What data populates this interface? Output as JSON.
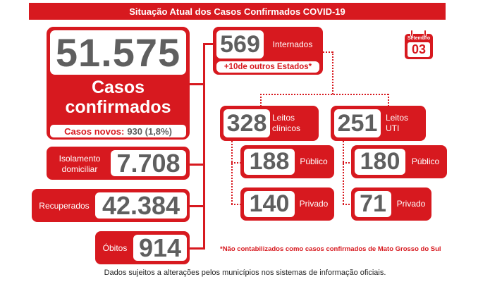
{
  "header": {
    "title": "Situação Atual dos Casos Confirmados COVID-19"
  },
  "total": {
    "value": "51.575",
    "label_line1": "Casos",
    "label_line2": "confirmados",
    "novos_label": "Casos novos:",
    "novos_value": "930 (1,8%)"
  },
  "isolamento": {
    "label_line1": "Isolamento",
    "label_line2": "domiciliar",
    "value": "7.708"
  },
  "recuperados": {
    "label": "Recuperados",
    "value": "42.384"
  },
  "obitos": {
    "label": "Óbitos",
    "value": "914"
  },
  "internados": {
    "value": "569",
    "label": "Internados",
    "outros": "+10de outros Estados*"
  },
  "clinicos": {
    "value": "328",
    "label_line1": "Leitos",
    "label_line2": "clínicos",
    "publico_value": "188",
    "publico_label": "Público",
    "privado_value": "140",
    "privado_label": "Privado"
  },
  "uti": {
    "value": "251",
    "label_line1": "Leitos",
    "label_line2": "UTI",
    "publico_value": "180",
    "publico_label": "Público",
    "privado_value": "71",
    "privado_label": "Privado"
  },
  "calendar": {
    "month": "Setembro",
    "day": "03"
  },
  "note": "*Não contabilizados como casos confirmados de Mato Grosso do Sul",
  "footer": "Dados sujeitos a alterações pelos municípios nos sistemas de informação oficiais.",
  "colors": {
    "accent": "#d7191f",
    "number_gray": "#5f5f5f"
  }
}
